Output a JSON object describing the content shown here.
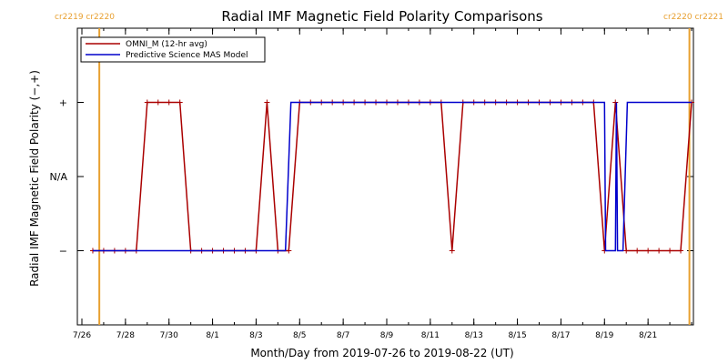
{
  "chart_data": {
    "type": "line",
    "title": "Radial IMF Magnetic Field Polarity Comparisons",
    "xlabel": "Month/Day from 2019-07-26 to 2019-08-22 (UT)",
    "ylabel": "Radial IMF Magnetic Field Polarity (−,+)",
    "xlim_days": [
      0,
      28
    ],
    "ylim": [
      -2,
      2
    ],
    "x_ticks": [
      {
        "day": 0,
        "label": "7/26"
      },
      {
        "day": 2,
        "label": "7/28"
      },
      {
        "day": 4,
        "label": "7/30"
      },
      {
        "day": 6,
        "label": "8/1"
      },
      {
        "day": 8,
        "label": "8/3"
      },
      {
        "day": 10,
        "label": "8/5"
      },
      {
        "day": 12,
        "label": "8/7"
      },
      {
        "day": 14,
        "label": "8/9"
      },
      {
        "day": 16,
        "label": "8/11"
      },
      {
        "day": 18,
        "label": "8/13"
      },
      {
        "day": 20,
        "label": "8/15"
      },
      {
        "day": 22,
        "label": "8/17"
      },
      {
        "day": 24,
        "label": "8/19"
      },
      {
        "day": 26,
        "label": "8/21"
      }
    ],
    "y_ticks": [
      {
        "value": 1,
        "label": "+"
      },
      {
        "value": 0,
        "label": "N/A"
      },
      {
        "value": -1,
        "label": "−"
      }
    ],
    "legend": {
      "placement": "top-left",
      "entries": [
        {
          "label": "OMNI_M (12-hr avg)",
          "color": "#aa0000"
        },
        {
          "label": "Predictive Science MAS Model",
          "color": "#0000cc"
        }
      ]
    },
    "carrington_markers": [
      {
        "day": 0.8,
        "label": "cr2219 cr2220",
        "side": "left",
        "color": "#e8a030"
      },
      {
        "day": 27.9,
        "label": "cr2220 cr2221",
        "side": "right",
        "color": "#e8a030"
      }
    ],
    "series": [
      {
        "name": "OMNI_M (12-hr avg)",
        "color": "#aa0000",
        "markers": true,
        "points": [
          [
            0.5,
            -1
          ],
          [
            1.0,
            -1
          ],
          [
            1.5,
            -1
          ],
          [
            2.0,
            -1
          ],
          [
            2.5,
            -1
          ],
          [
            3.0,
            1
          ],
          [
            3.5,
            1
          ],
          [
            4.0,
            1
          ],
          [
            4.5,
            1
          ],
          [
            5.0,
            -1
          ],
          [
            5.5,
            -1
          ],
          [
            6.0,
            -1
          ],
          [
            6.5,
            -1
          ],
          [
            7.0,
            -1
          ],
          [
            7.5,
            -1
          ],
          [
            8.0,
            -1
          ],
          [
            8.5,
            1
          ],
          [
            9.0,
            -1
          ],
          [
            9.5,
            -1
          ],
          [
            10.0,
            1
          ],
          [
            10.5,
            1
          ],
          [
            11.0,
            1
          ],
          [
            11.5,
            1
          ],
          [
            12.0,
            1
          ],
          [
            12.5,
            1
          ],
          [
            13.0,
            1
          ],
          [
            13.5,
            1
          ],
          [
            14.0,
            1
          ],
          [
            14.5,
            1
          ],
          [
            15.0,
            1
          ],
          [
            15.5,
            1
          ],
          [
            16.0,
            1
          ],
          [
            16.5,
            1
          ],
          [
            17.0,
            -1
          ],
          [
            17.5,
            1
          ],
          [
            18.0,
            1
          ],
          [
            18.5,
            1
          ],
          [
            19.0,
            1
          ],
          [
            19.5,
            1
          ],
          [
            20.0,
            1
          ],
          [
            20.5,
            1
          ],
          [
            21.0,
            1
          ],
          [
            21.5,
            1
          ],
          [
            22.0,
            1
          ],
          [
            22.5,
            1
          ],
          [
            23.0,
            1
          ],
          [
            23.5,
            1
          ],
          [
            24.0,
            -1
          ],
          [
            24.5,
            1
          ],
          [
            25.0,
            -1
          ],
          [
            25.5,
            -1
          ],
          [
            26.0,
            -1
          ],
          [
            26.5,
            -1
          ],
          [
            27.0,
            -1
          ],
          [
            27.5,
            -1
          ],
          [
            28.0,
            1
          ]
        ]
      },
      {
        "name": "Predictive Science MAS Model",
        "color": "#0000cc",
        "markers": false,
        "points": [
          [
            0.5,
            -1
          ],
          [
            9.35,
            -1
          ],
          [
            9.6,
            1
          ],
          [
            24.0,
            1
          ],
          [
            24.05,
            -1
          ],
          [
            24.5,
            -1
          ],
          [
            24.55,
            1
          ],
          [
            24.6,
            -1
          ],
          [
            24.85,
            -1
          ],
          [
            25.05,
            1
          ],
          [
            28.0,
            1
          ]
        ]
      }
    ]
  }
}
